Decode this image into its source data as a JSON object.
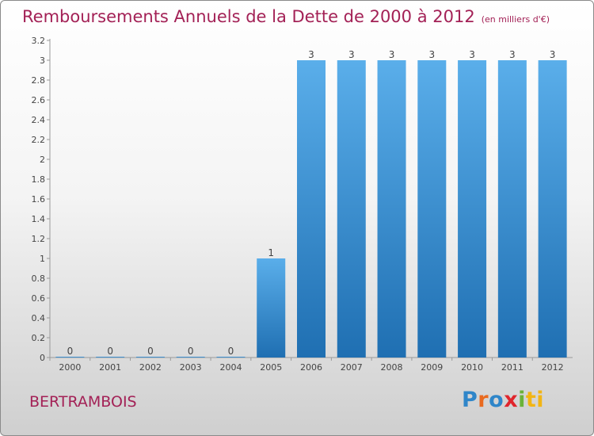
{
  "title": "Remboursements Annuels de la Dette de 2000 à 2012",
  "unit": "(en milliers d'€)",
  "municipality": "BERTRAMBOIS",
  "logo": [
    "P",
    "r",
    "o",
    "x",
    "i",
    "ti"
  ],
  "colors": {
    "title": "#a32156",
    "bar_top": "#5aaeea",
    "bar_bottom": "#1f6fb2"
  },
  "chart_data": {
    "type": "bar",
    "categories": [
      "2000",
      "2001",
      "2002",
      "2003",
      "2004",
      "2005",
      "2006",
      "2007",
      "2008",
      "2009",
      "2010",
      "2011",
      "2012"
    ],
    "values": [
      0,
      0,
      0,
      0,
      0,
      1,
      3,
      3,
      3,
      3,
      3,
      3,
      3
    ],
    "data_labels": [
      "0",
      "0",
      "0",
      "0",
      "0",
      "1",
      "3",
      "3",
      "3",
      "3",
      "3",
      "3",
      "3"
    ],
    "ylim": [
      0,
      3.2
    ],
    "yticks": [
      {
        "value": 0,
        "label": "0"
      },
      {
        "value": 0.2,
        "label": "0.2"
      },
      {
        "value": 0.4,
        "label": "0.4"
      },
      {
        "value": 0.6,
        "label": "0.6"
      },
      {
        "value": 0.8,
        "label": "0.8"
      },
      {
        "value": 1,
        "label": "1"
      },
      {
        "value": 1.2,
        "label": "1.2"
      },
      {
        "value": 1.4,
        "label": "1.4"
      },
      {
        "value": 1.6,
        "label": "1.6"
      },
      {
        "value": 1.8,
        "label": "1.8"
      },
      {
        "value": 2,
        "label": "2"
      },
      {
        "value": 2.2,
        "label": "2.2"
      },
      {
        "value": 2.4,
        "label": "2.4"
      },
      {
        "value": 2.6,
        "label": "2.6"
      },
      {
        "value": 2.8,
        "label": "2.8"
      },
      {
        "value": 3,
        "label": "3"
      },
      {
        "value": 3.2,
        "label": "3.2"
      }
    ],
    "grid": false
  }
}
